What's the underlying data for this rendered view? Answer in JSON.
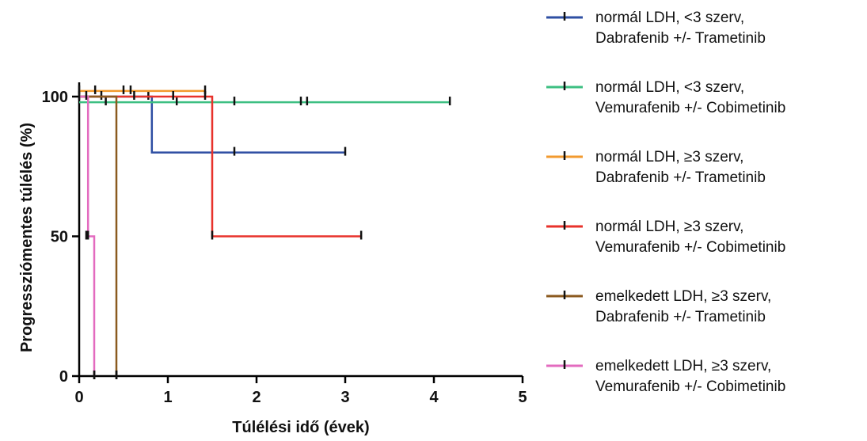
{
  "chart_data": {
    "type": "line",
    "xlabel": "Túlélési idő (évek)",
    "ylabel": "Progressziómentes túlélés (%)",
    "xlim": [
      0,
      5
    ],
    "ylim": [
      0,
      100
    ],
    "x_ticks": [
      0,
      1,
      2,
      3,
      4,
      5
    ],
    "x_tick_labels": [
      "0",
      "1",
      "2",
      "3",
      "4",
      "5"
    ],
    "y_ticks": [
      0,
      50,
      100
    ],
    "y_tick_labels": [
      "0",
      "50",
      "100"
    ],
    "grid": false,
    "legend_position": "right",
    "series": [
      {
        "name": "normál LDH, <3 szerv, Dabrafenib +/- Trametinib",
        "color": "#2e4fa3",
        "steps": [
          [
            0,
            100
          ],
          [
            0.82,
            100
          ],
          [
            0.82,
            80
          ],
          [
            3.0,
            80
          ]
        ],
        "censors": [
          [
            0.78,
            100
          ],
          [
            1.75,
            80
          ],
          [
            3.0,
            80
          ]
        ]
      },
      {
        "name": "normál LDH, <3 szerv, Vemurafenib +/- Cobimetinib",
        "color": "#3dbf82",
        "steps": [
          [
            0,
            98
          ],
          [
            4.18,
            98
          ]
        ],
        "censors": [
          [
            0.3,
            98
          ],
          [
            1.1,
            98
          ],
          [
            1.75,
            98
          ],
          [
            2.5,
            98
          ],
          [
            2.57,
            98
          ],
          [
            4.18,
            98
          ]
        ]
      },
      {
        "name": "normál LDH, ≥3 szerv, Dabrafenib +/- Trametinib",
        "color": "#f29a2e",
        "steps": [
          [
            0,
            102
          ],
          [
            1.42,
            102
          ]
        ],
        "censors": [
          [
            0,
            102
          ],
          [
            0.18,
            102
          ],
          [
            0.5,
            102
          ],
          [
            0.58,
            102
          ],
          [
            1.42,
            102
          ]
        ]
      },
      {
        "name": "normál LDH, ≥3 szerv, Vemurafenib +/- Cobimetinib",
        "color": "#e8322b",
        "steps": [
          [
            0,
            100
          ],
          [
            1.5,
            100
          ],
          [
            1.5,
            50
          ],
          [
            3.18,
            50
          ]
        ],
        "censors": [
          [
            0.25,
            100
          ],
          [
            1.42,
            100
          ],
          [
            1.5,
            50
          ],
          [
            3.18,
            50
          ]
        ]
      },
      {
        "name": "emelkedett LDH, ≥3 szerv, Dabrafenib +/- Trametinib",
        "color": "#8b5a1f",
        "steps": [
          [
            0,
            100
          ],
          [
            0.42,
            100
          ],
          [
            0.42,
            0
          ]
        ],
        "censors": [
          [
            0.42,
            0
          ]
        ]
      },
      {
        "name": "emelkedett LDH, ≥3 szerv, Vemurafenib +/- Cobimetinib",
        "color": "#e36bbf",
        "steps": [
          [
            0,
            100
          ],
          [
            0.1,
            100
          ],
          [
            0.1,
            50
          ],
          [
            0.17,
            50
          ],
          [
            0.17,
            0
          ]
        ],
        "censors": [
          [
            0.1,
            50
          ],
          [
            0.17,
            0
          ]
        ]
      }
    ],
    "baseline_censors": [
      [
        0.0,
        100
      ],
      [
        0.08,
        100
      ],
      [
        0.62,
        100
      ],
      [
        1.06,
        100
      ],
      [
        0.08,
        50
      ],
      [
        0.17,
        0
      ],
      [
        0.42,
        0
      ]
    ]
  }
}
